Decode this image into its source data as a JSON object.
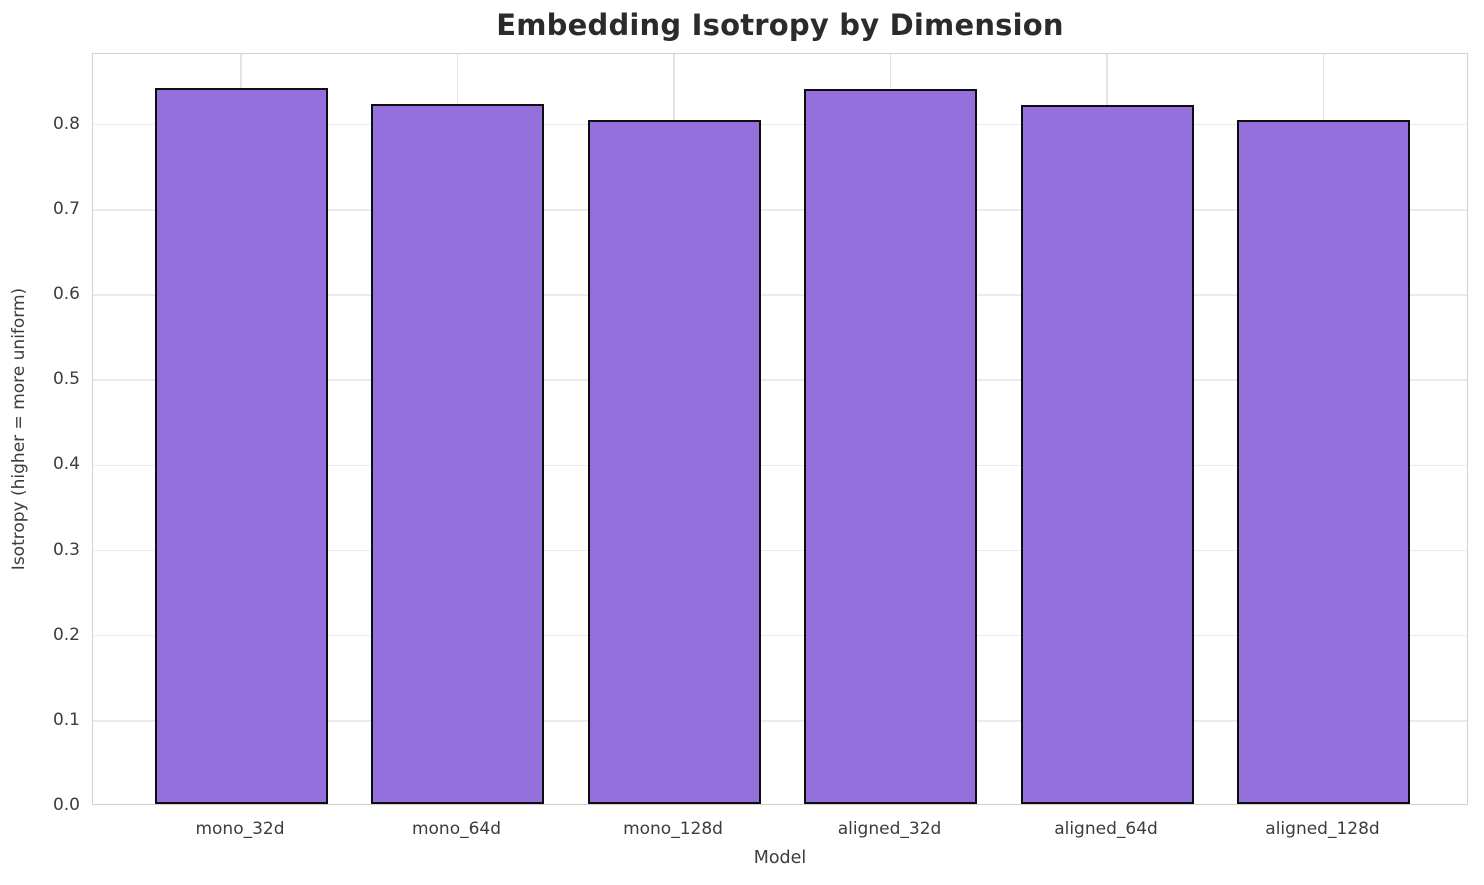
{
  "chart_data": {
    "type": "bar",
    "title": "Embedding Isotropy by Dimension",
    "xlabel": "Model",
    "ylabel": "Isotropy (higher = more uniform)",
    "categories": [
      "mono_32d",
      "mono_64d",
      "mono_128d",
      "aligned_32d",
      "aligned_64d",
      "aligned_128d"
    ],
    "values": [
      0.841,
      0.822,
      0.803,
      0.84,
      0.821,
      0.803
    ],
    "ylim": [
      0,
      0.883
    ],
    "yticks": [
      0.0,
      0.1,
      0.2,
      0.3,
      0.4,
      0.5,
      0.6,
      0.7,
      0.8
    ],
    "ytick_labels": [
      "0.0",
      "0.1",
      "0.2",
      "0.3",
      "0.4",
      "0.5",
      "0.6",
      "0.7",
      "0.8"
    ],
    "grid": "horizontal lines at each 0.1 tick and vertical lines at each category center, light gray, on white background",
    "legend": null,
    "bar_color": "#9370DB",
    "bar_edge_color": "#0d0d0d",
    "text_color": "#3c3c3c",
    "title_color": "#2b2b2b"
  }
}
